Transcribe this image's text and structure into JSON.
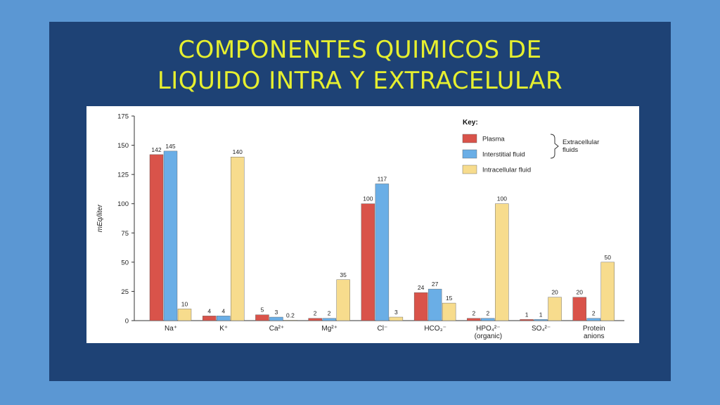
{
  "slide": {
    "title_line1": "COMPONENTES QUIMICOS DE",
    "title_line2": "LIQUIDO INTRA Y EXTRACELULAR"
  },
  "chart_data": {
    "type": "bar",
    "ylabel": "mEq/liter",
    "ylim": [
      0,
      175
    ],
    "yticks": [
      0,
      25,
      50,
      75,
      100,
      125,
      150,
      175
    ],
    "categories": [
      [
        "Na⁺"
      ],
      [
        "K⁺"
      ],
      [
        "Ca²⁺"
      ],
      [
        "Mg²⁺"
      ],
      [
        "Cl⁻"
      ],
      [
        "HCO₃⁻"
      ],
      [
        "HPO₄²⁻",
        "(organic)"
      ],
      [
        "SO₄²⁻"
      ],
      [
        "Protein",
        "anions"
      ]
    ],
    "series": [
      {
        "name": "Plasma",
        "color": "#d9534a",
        "values": [
          142,
          4,
          5,
          2,
          100,
          24,
          2,
          1,
          20
        ]
      },
      {
        "name": "Interstitial fluid",
        "color": "#6aaee6",
        "values": [
          145,
          4,
          3,
          2,
          117,
          27,
          2,
          1,
          2
        ]
      },
      {
        "name": "Intracellular fluid",
        "color": "#f7dc8d",
        "values": [
          10,
          140,
          0.2,
          35,
          3,
          15,
          100,
          20,
          50
        ]
      }
    ],
    "legend": {
      "title": "Key:",
      "group_label": [
        "Extracellular",
        "fluids"
      ],
      "placement": "top-right"
    }
  }
}
